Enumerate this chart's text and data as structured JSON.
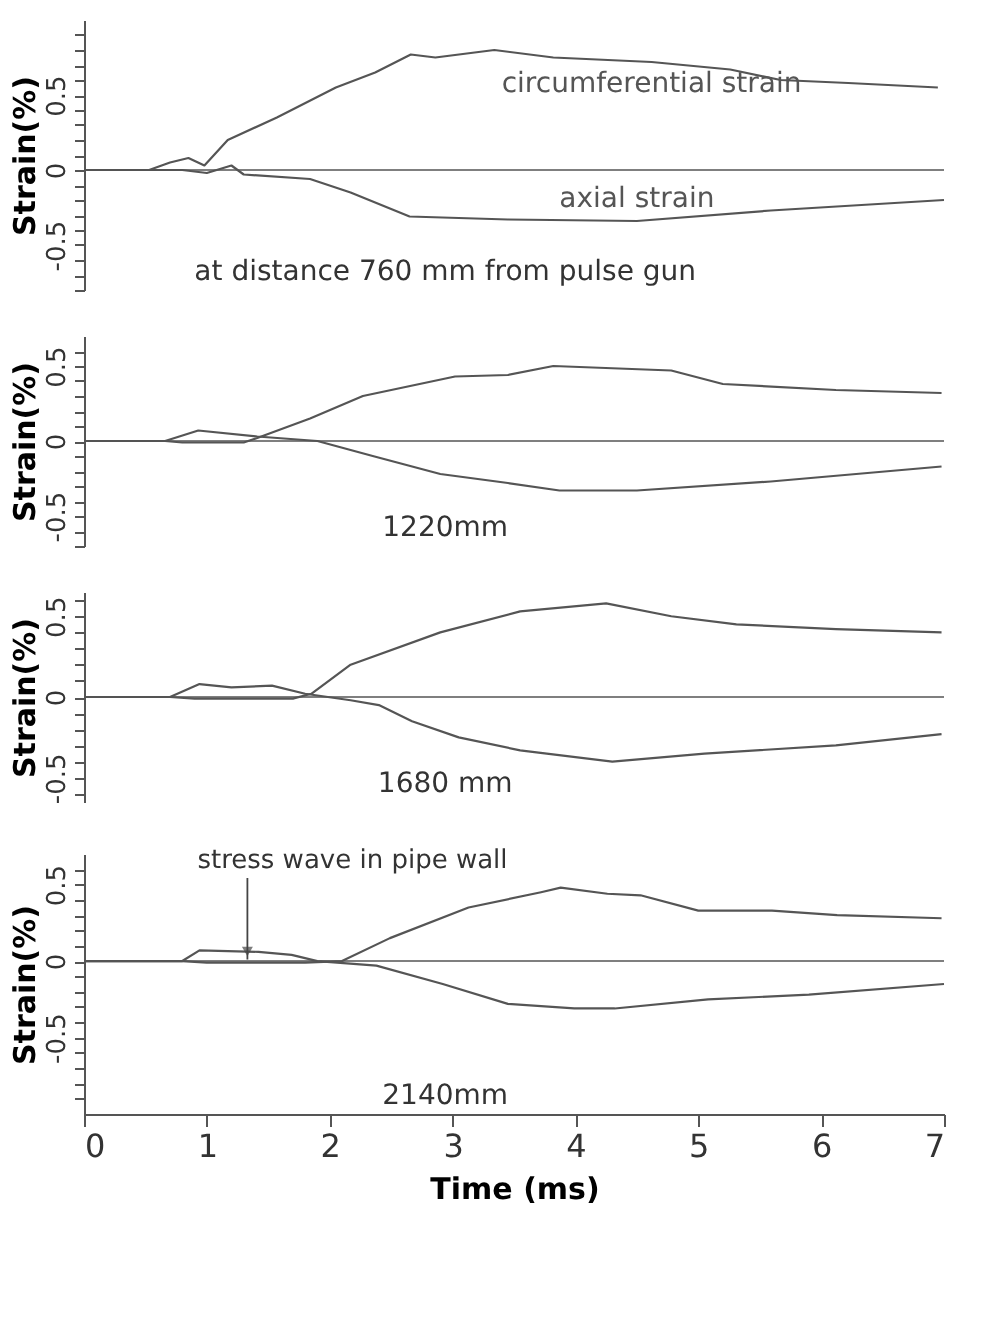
{
  "chart_data": [
    {
      "type": "line",
      "ylabel": "Strain(%)",
      "xlim": [
        0,
        7
      ],
      "xticks": [
        0,
        1,
        2,
        3,
        4,
        5,
        6,
        7
      ],
      "ylim": [
        -0.8,
        1.0
      ],
      "yticks": [
        {
          "value": -0.8,
          "label": null
        },
        {
          "value": -0.7,
          "label": null
        },
        {
          "value": -0.6,
          "label": null
        },
        -0.5,
        {
          "value": -0.4,
          "label": null
        },
        {
          "value": -0.3,
          "label": null
        },
        {
          "value": -0.2,
          "label": null
        },
        {
          "value": -0.1,
          "label": null
        },
        0,
        {
          "value": 0.1,
          "label": null
        },
        {
          "value": 0.2,
          "label": null
        },
        {
          "value": 0.3,
          "label": null
        },
        {
          "value": 0.4,
          "label": null
        },
        0.5,
        {
          "value": 0.6,
          "label": null
        },
        {
          "value": 0.7,
          "label": null
        },
        {
          "value": 0.8,
          "label": null
        },
        {
          "value": 0.9,
          "label": null
        }
      ],
      "tick_labels": "y",
      "grid": false,
      "line_style": "solid",
      "marker": "none",
      "series": [
        {
          "name": "circumferential strain",
          "color": "#555555",
          "x": [
            0,
            0.53,
            0.7,
            0.85,
            0.98,
            1.17,
            1.57,
            2.05,
            2.37,
            2.66,
            2.86,
            3.34,
            3.82,
            4.62,
            5.26,
            5.67,
            6.22,
            6.95
          ],
          "values": [
            0,
            0,
            0.05,
            0.08,
            0.03,
            0.2,
            0.35,
            0.55,
            0.65,
            0.77,
            0.75,
            0.8,
            0.75,
            0.72,
            0.67,
            0.6,
            0.58,
            0.55
          ]
        },
        {
          "name": "axial strain",
          "color": "#555555",
          "x": [
            0,
            0.8,
            1.0,
            1.2,
            1.3,
            1.84,
            2.17,
            2.65,
            3.45,
            4.5,
            5.59,
            7.0
          ],
          "values": [
            0,
            0,
            -0.02,
            0.03,
            -0.03,
            -0.06,
            -0.15,
            -0.31,
            -0.33,
            -0.34,
            -0.27,
            -0.2
          ]
        }
      ],
      "ref_lines": [
        {
          "axis": "y",
          "value": 0,
          "color": "#555555"
        }
      ],
      "annotations": [
        "at distance  760 mm from pulse gun"
      ]
    },
    {
      "type": "line",
      "ylabel": "Strain(%)",
      "xlim": [
        0,
        7
      ],
      "xticks": [
        0,
        1,
        2,
        3,
        4,
        5,
        6,
        7
      ],
      "ylim": [
        -0.7,
        0.7
      ],
      "yticks": [
        {
          "value": -0.7,
          "label": null
        },
        {
          "value": -0.6,
          "label": null
        },
        -0.5,
        {
          "value": -0.4,
          "label": null
        },
        {
          "value": -0.3,
          "label": null
        },
        {
          "value": -0.2,
          "label": null
        },
        {
          "value": -0.1,
          "label": null
        },
        0,
        {
          "value": 0.1,
          "label": null
        },
        {
          "value": 0.2,
          "label": null
        },
        {
          "value": 0.3,
          "label": null
        },
        {
          "value": 0.4,
          "label": null
        },
        0.5,
        {
          "value": 0.6,
          "label": null
        }
      ],
      "tick_labels": "y",
      "grid": false,
      "line_style": "solid",
      "marker": "none",
      "series": [
        {
          "color": "#555555",
          "x": [
            0,
            0.66,
            0.8,
            1.0,
            1.3,
            1.41,
            1.84,
            2.27,
            3.02,
            3.45,
            3.82,
            4.78,
            5.2,
            6.12,
            6.98
          ],
          "values": [
            0,
            0,
            -0.01,
            -0.01,
            -0.01,
            0.02,
            0.15,
            0.3,
            0.43,
            0.44,
            0.5,
            0.47,
            0.38,
            0.34,
            0.32
          ]
        },
        {
          "color": "#555555",
          "x": [
            0,
            0.66,
            0.93,
            1.41,
            1.9,
            2.35,
            2.9,
            3.45,
            3.87,
            4.5,
            5.59,
            6.98
          ],
          "values": [
            0,
            0,
            0.07,
            0.03,
            0,
            -0.1,
            -0.22,
            -0.28,
            -0.33,
            -0.33,
            -0.27,
            -0.17
          ]
        }
      ],
      "ref_lines": [
        {
          "axis": "y",
          "value": 0,
          "color": "#555555"
        }
      ],
      "annotations": [
        "1220mm"
      ]
    },
    {
      "type": "line",
      "ylabel": "Strain(%)",
      "xlim": [
        0,
        7
      ],
      "xticks": [
        0,
        1,
        2,
        3,
        4,
        5,
        6,
        7
      ],
      "ylim": [
        -0.65,
        0.65
      ],
      "yticks": [
        {
          "value": -0.6,
          "label": null
        },
        -0.5,
        {
          "value": -0.4,
          "label": null
        },
        {
          "value": -0.3,
          "label": null
        },
        {
          "value": -0.2,
          "label": null
        },
        {
          "value": -0.1,
          "label": null
        },
        0,
        {
          "value": 0.1,
          "label": null
        },
        {
          "value": 0.2,
          "label": null
        },
        {
          "value": 0.3,
          "label": null
        },
        {
          "value": 0.4,
          "label": null
        },
        0.5,
        {
          "value": 0.6,
          "label": null
        }
      ],
      "tick_labels": "y",
      "grid": false,
      "line_style": "solid",
      "marker": "none",
      "series": [
        {
          "color": "#555555",
          "x": [
            0,
            0.7,
            0.9,
            1.3,
            1.7,
            1.85,
            2.17,
            2.9,
            3.55,
            4.25,
            4.78,
            5.31,
            6.12,
            6.98
          ],
          "values": [
            0,
            0,
            -0.01,
            -0.01,
            -0.01,
            0.02,
            0.2,
            0.4,
            0.53,
            0.58,
            0.5,
            0.45,
            0.42,
            0.4
          ]
        },
        {
          "color": "#555555",
          "x": [
            0,
            0.7,
            0.94,
            1.2,
            1.53,
            1.8,
            2.17,
            2.4,
            2.67,
            3.05,
            3.55,
            4.3,
            5.05,
            6.12,
            6.98
          ],
          "values": [
            0,
            0,
            0.08,
            0.06,
            0.07,
            0.02,
            -0.02,
            -0.05,
            -0.15,
            -0.25,
            -0.33,
            -0.4,
            -0.35,
            -0.3,
            -0.23
          ]
        }
      ],
      "ref_lines": [
        {
          "axis": "y",
          "value": 0,
          "color": "#555555"
        }
      ],
      "annotations": [
        "1680 mm"
      ]
    },
    {
      "type": "line",
      "ylabel": "Strain(%)",
      "xlabel": "Time (ms)",
      "xlim": [
        0,
        7
      ],
      "xticks": [
        0,
        1,
        2,
        3,
        4,
        5,
        6,
        7
      ],
      "ylim": [
        -1.0,
        0.7
      ],
      "yticks": [
        {
          "value": -0.9,
          "label": null
        },
        {
          "value": -0.8,
          "label": null
        },
        {
          "value": -0.7,
          "label": null
        },
        {
          "value": -0.6,
          "label": null
        },
        -0.5,
        {
          "value": -0.4,
          "label": null
        },
        {
          "value": -0.3,
          "label": null
        },
        {
          "value": -0.2,
          "label": null
        },
        {
          "value": -0.1,
          "label": null
        },
        0,
        {
          "value": 0.1,
          "label": null
        },
        {
          "value": 0.2,
          "label": null
        },
        {
          "value": 0.3,
          "label": null
        },
        {
          "value": 0.4,
          "label": null
        },
        0.5,
        {
          "value": 0.6,
          "label": null
        }
      ],
      "grid": false,
      "line_style": "solid",
      "marker": "none",
      "series": [
        {
          "color": "#555555",
          "x": [
            0,
            0.8,
            1.0,
            1.5,
            1.8,
            2.1,
            2.49,
            3.13,
            3.72,
            3.88,
            4.26,
            4.53,
            5.0,
            5.6,
            6.13,
            6.98
          ],
          "values": [
            0,
            0,
            -0.01,
            -0.01,
            -0.01,
            0,
            0.15,
            0.35,
            0.45,
            0.48,
            0.44,
            0.43,
            0.33,
            0.33,
            0.3,
            0.28
          ]
        },
        {
          "color": "#555555",
          "x": [
            0,
            0.8,
            0.94,
            1.42,
            1.69,
            1.9,
            2.38,
            2.92,
            3.45,
            3.99,
            4.32,
            5.08,
            5.9,
            7.0
          ],
          "values": [
            0,
            0,
            0.07,
            0.06,
            0.04,
            0,
            -0.03,
            -0.15,
            -0.28,
            -0.31,
            -0.31,
            -0.25,
            -0.22,
            -0.15
          ]
        }
      ],
      "ref_lines": [
        {
          "axis": "y",
          "value": 0,
          "color": "#555555"
        }
      ],
      "annotations": [
        {
          "text": "stress wave in pipe wall",
          "x": 1.33,
          "y": 0.01
        },
        "2140mm"
      ]
    }
  ]
}
